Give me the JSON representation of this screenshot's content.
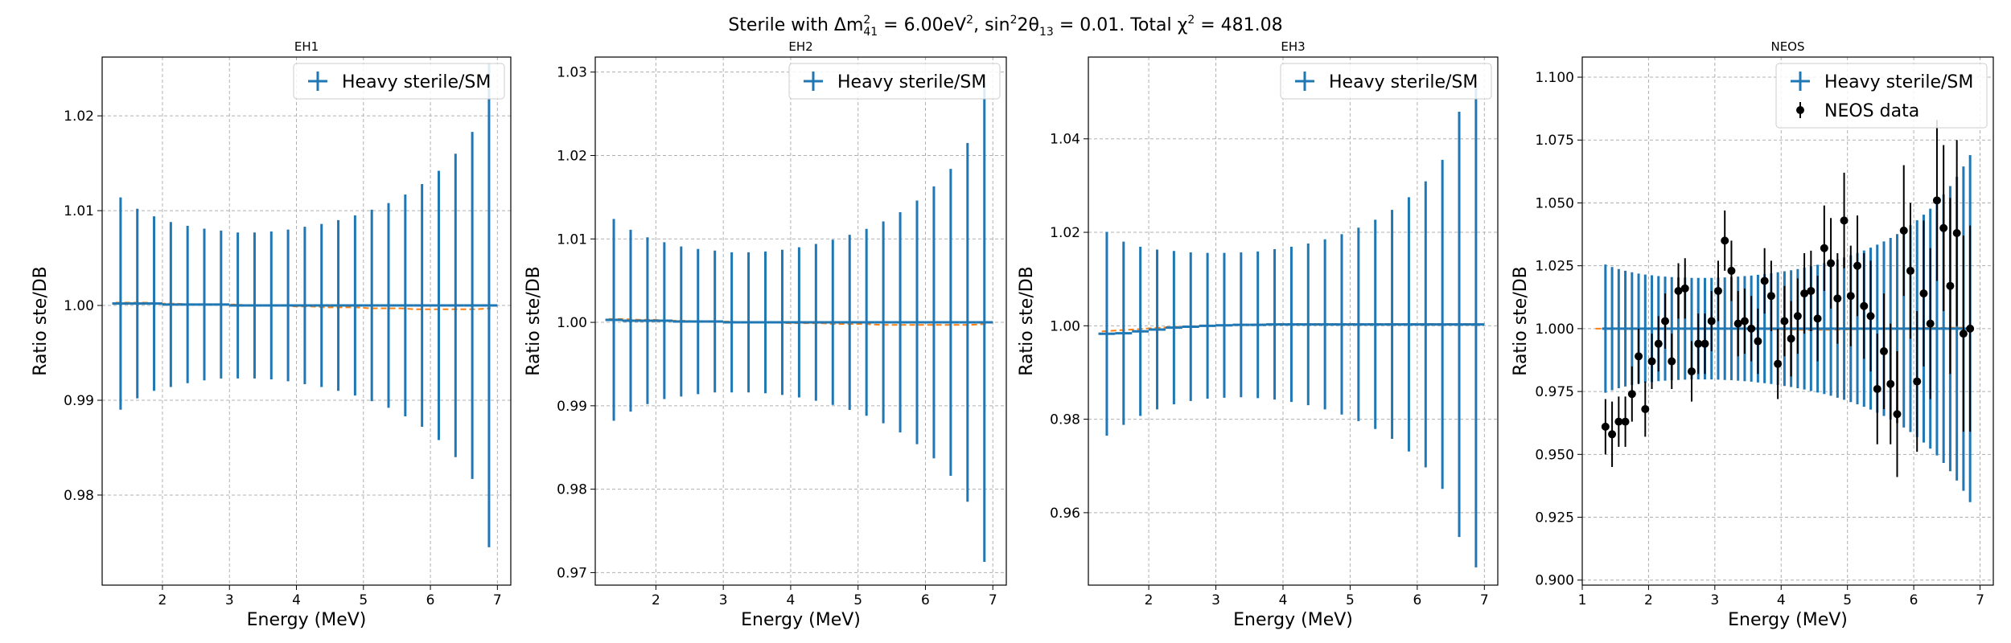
{
  "figure": {
    "title_parts": {
      "t1": "Sterile with Δm",
      "t2": "2",
      "t3": "41",
      "t4": " = 6.00eV",
      "t5": "2",
      "t6": ", sin",
      "t7": "2",
      "t8": "2θ",
      "t9": "13",
      "t10": " = 0.01. Total χ",
      "t11": "2",
      "t12": " = 481.08"
    }
  },
  "colors": {
    "model": "#1f77b4",
    "reference_line": "#ff7f0e",
    "data": "#000000",
    "grid": "#b0b0b0"
  },
  "chart_data": [
    {
      "type": "scatter",
      "title": "EH1",
      "xlabel": "Energy (MeV)",
      "ylabel": "Ratio ste/DB",
      "xlim": [
        1.1,
        7.2
      ],
      "ylim": [
        0.9705,
        1.0262
      ],
      "xticks": [
        2,
        3,
        4,
        5,
        6,
        7
      ],
      "yticks": [
        0.98,
        0.99,
        1.0,
        1.01,
        1.02
      ],
      "ytick_format": 2,
      "grid": true,
      "legend_position": "top-right",
      "reference_line": {
        "y": [
          1.0003,
          1.0003,
          1.0003,
          1.0002,
          1.0002,
          1.0001,
          1.0001,
          1.0001,
          1.0001,
          1.0,
          1.0,
          1.0,
          0.9999,
          0.9999,
          0.9998,
          0.9998,
          0.9998,
          0.9997,
          0.9997,
          0.9997,
          0.9996,
          0.9996,
          0.9996,
          0.9996,
          0.9996,
          0.9997
        ]
      },
      "series": [
        {
          "name": "Heavy sterile/SM",
          "style": "errorbar",
          "x": [
            1.375,
            1.625,
            1.875,
            2.125,
            2.375,
            2.625,
            2.875,
            3.125,
            3.375,
            3.625,
            3.875,
            4.125,
            4.375,
            4.625,
            4.875,
            5.125,
            5.375,
            5.625,
            5.875,
            6.125,
            6.375,
            6.625,
            6.875
          ],
          "xerr": 0.125,
          "y": [
            1.0002,
            1.0002,
            1.0002,
            1.0001,
            1.0001,
            1.0001,
            1.0001,
            1.0,
            1.0,
            1.0,
            1.0,
            1.0,
            1.0,
            1.0,
            1.0,
            1.0,
            1.0,
            1.0,
            1.0,
            1.0,
            1.0,
            1.0,
            1.0
          ],
          "yerr": [
            0.0112,
            0.01,
            0.0092,
            0.0087,
            0.0083,
            0.008,
            0.0078,
            0.0077,
            0.0077,
            0.0078,
            0.008,
            0.0083,
            0.0086,
            0.009,
            0.0095,
            0.0101,
            0.0108,
            0.0117,
            0.0128,
            0.0142,
            0.016,
            0.0183,
            0.0255
          ]
        }
      ]
    },
    {
      "type": "scatter",
      "title": "EH2",
      "xlabel": "Energy (MeV)",
      "ylabel": "Ratio ste/DB",
      "xlim": [
        1.1,
        7.2
      ],
      "ylim": [
        0.9685,
        1.0318
      ],
      "xticks": [
        2,
        3,
        4,
        5,
        6,
        7
      ],
      "yticks": [
        0.97,
        0.98,
        0.99,
        1.0,
        1.01,
        1.02,
        1.03
      ],
      "ytick_format": 2,
      "grid": true,
      "legend_position": "top-right",
      "reference_line": {
        "y": [
          1.0004,
          1.0004,
          1.0003,
          1.0003,
          1.0002,
          1.0002,
          1.0001,
          1.0001,
          1.0001,
          1.0,
          1.0,
          1.0,
          0.9999,
          0.9999,
          0.9999,
          0.9998,
          0.9998,
          0.9998,
          0.9997,
          0.9997,
          0.9997,
          0.9997,
          0.9997,
          0.9997,
          0.9997,
          0.9998
        ]
      },
      "series": [
        {
          "name": "Heavy sterile/SM",
          "style": "errorbar",
          "x": [
            1.375,
            1.625,
            1.875,
            2.125,
            2.375,
            2.625,
            2.875,
            3.125,
            3.375,
            3.625,
            3.875,
            4.125,
            4.375,
            4.625,
            4.875,
            5.125,
            5.375,
            5.625,
            5.875,
            6.125,
            6.375,
            6.625,
            6.875
          ],
          "xerr": 0.125,
          "y": [
            1.0003,
            1.0002,
            1.0002,
            1.0002,
            1.0001,
            1.0001,
            1.0001,
            1.0,
            1.0,
            1.0,
            1.0,
            1.0,
            1.0,
            1.0,
            1.0,
            1.0,
            1.0,
            1.0,
            1.0,
            1.0,
            1.0,
            1.0,
            1.0
          ],
          "yerr": [
            0.0121,
            0.0109,
            0.01,
            0.0094,
            0.009,
            0.0087,
            0.0085,
            0.0084,
            0.0084,
            0.0085,
            0.0087,
            0.009,
            0.0094,
            0.0099,
            0.0105,
            0.0112,
            0.0121,
            0.0132,
            0.0146,
            0.0163,
            0.0184,
            0.0215,
            0.0287
          ]
        }
      ]
    },
    {
      "type": "scatter",
      "title": "EH3",
      "xlabel": "Energy (MeV)",
      "ylabel": "Ratio ste/DB",
      "xlim": [
        1.1,
        7.2
      ],
      "ylim": [
        0.9445,
        1.0575
      ],
      "xticks": [
        2,
        3,
        4,
        5,
        6,
        7
      ],
      "yticks": [
        0.96,
        0.98,
        1.0,
        1.02,
        1.04
      ],
      "ytick_format": 2,
      "grid": true,
      "legend_position": "top-right",
      "reference_line": {
        "y": [
          0.9988,
          0.999,
          0.9992,
          0.9994,
          0.9996,
          0.9998,
          0.9999,
          1.0,
          1.0001,
          1.0002,
          1.0003,
          1.0003,
          1.0004,
          1.0004,
          1.0004,
          1.0004,
          1.0004,
          1.0004,
          1.0004,
          1.0004,
          1.0004,
          1.0004,
          1.0004,
          1.0004,
          1.0004,
          1.0004
        ]
      },
      "series": [
        {
          "name": "Heavy sterile/SM",
          "style": "errorbar",
          "x": [
            1.375,
            1.625,
            1.875,
            2.125,
            2.375,
            2.625,
            2.875,
            3.125,
            3.375,
            3.625,
            3.875,
            4.125,
            4.375,
            4.625,
            4.875,
            5.125,
            5.375,
            5.625,
            5.875,
            6.125,
            6.375,
            6.625,
            6.875
          ],
          "xerr": 0.125,
          "y": [
            0.9983,
            0.9984,
            0.9988,
            0.9992,
            0.9996,
            0.9998,
            1.0,
            1.0001,
            1.0002,
            1.0002,
            1.0003,
            1.0003,
            1.0003,
            1.0003,
            1.0003,
            1.0003,
            1.0003,
            1.0003,
            1.0003,
            1.0003,
            1.0003,
            1.0003,
            1.0003
          ],
          "yerr": [
            0.0218,
            0.0196,
            0.0181,
            0.0171,
            0.0164,
            0.0159,
            0.0156,
            0.0155,
            0.0155,
            0.0157,
            0.0161,
            0.0166,
            0.0173,
            0.0182,
            0.0193,
            0.0207,
            0.0224,
            0.0245,
            0.0272,
            0.0306,
            0.0352,
            0.0455,
            0.052
          ]
        }
      ]
    },
    {
      "type": "scatter",
      "title": "NEOS",
      "xlabel": "Energy (MeV)",
      "ylabel": "Ratio ste/DB",
      "xlim": [
        1.0,
        7.2
      ],
      "ylim": [
        0.898,
        1.108
      ],
      "xticks": [
        1,
        2,
        3,
        4,
        5,
        6,
        7
      ],
      "yticks": [
        0.9,
        0.925,
        0.95,
        0.975,
        1.0,
        1.025,
        1.05,
        1.075,
        1.1
      ],
      "ytick_format": 3,
      "grid": true,
      "legend_position": "top-right",
      "reference_line": {
        "y": [
          1.0,
          1.0,
          1.0,
          1.0,
          1.0,
          1.0,
          1.0,
          1.0,
          1.0,
          1.0,
          1.0,
          0.9998,
          0.9997,
          0.9996,
          0.9995,
          0.9995,
          0.9996,
          0.9997,
          0.9999,
          1.0,
          1.0001,
          1.0002,
          1.0003,
          1.0003,
          1.0004,
          1.0004
        ]
      },
      "series": [
        {
          "name": "Heavy sterile/SM",
          "style": "errorbar",
          "x": [
            1.35,
            1.45,
            1.55,
            1.65,
            1.75,
            1.85,
            1.95,
            2.05,
            2.15,
            2.25,
            2.35,
            2.45,
            2.55,
            2.65,
            2.75,
            2.85,
            2.95,
            3.05,
            3.15,
            3.25,
            3.35,
            3.45,
            3.55,
            3.65,
            3.75,
            3.85,
            3.95,
            4.05,
            4.15,
            4.25,
            4.35,
            4.45,
            4.55,
            4.65,
            4.75,
            4.85,
            4.95,
            5.05,
            5.15,
            5.25,
            5.35,
            5.45,
            5.55,
            5.65,
            5.75,
            5.85,
            5.95,
            6.05,
            6.15,
            6.25,
            6.35,
            6.45,
            6.55,
            6.65,
            6.75,
            6.85
          ],
          "xerr": 0.05,
          "y": [
            1.0,
            1.0,
            1.0,
            1.0,
            1.0,
            1.0,
            1.0,
            1.0,
            1.0,
            1.0,
            1.0,
            1.0,
            1.0,
            1.0,
            1.0,
            1.0,
            1.0,
            1.0,
            1.0,
            1.0,
            1.0,
            1.0,
            1.0,
            1.0,
            1.0,
            1.0,
            1.0,
            1.0,
            1.0,
            1.0,
            1.0,
            1.0,
            1.0,
            1.0,
            1.0,
            1.0,
            1.0,
            1.0,
            1.0,
            1.0,
            1.0,
            1.0,
            1.0,
            1.0,
            1.0,
            1.0,
            1.0,
            1.0,
            1.0,
            1.0,
            1.0,
            1.0,
            1.0,
            1.0,
            1.0,
            1.0
          ],
          "yerr": [
            0.0255,
            0.0245,
            0.0237,
            0.023,
            0.0224,
            0.0219,
            0.0215,
            0.0212,
            0.0209,
            0.0207,
            0.0205,
            0.0204,
            0.0203,
            0.0202,
            0.0202,
            0.0202,
            0.0202,
            0.0203,
            0.0204,
            0.0205,
            0.0207,
            0.0209,
            0.0211,
            0.0214,
            0.0217,
            0.022,
            0.0224,
            0.0228,
            0.0232,
            0.0237,
            0.0242,
            0.0248,
            0.0254,
            0.026,
            0.0267,
            0.0275,
            0.0283,
            0.0292,
            0.0301,
            0.0311,
            0.0322,
            0.0334,
            0.0347,
            0.0361,
            0.0376,
            0.0393,
            0.0411,
            0.0431,
            0.0453,
            0.0477,
            0.0504,
            0.0534,
            0.0567,
            0.0604,
            0.0645,
            0.069
          ]
        },
        {
          "name": "NEOS data",
          "style": "points",
          "x": [
            1.35,
            1.45,
            1.55,
            1.65,
            1.75,
            1.85,
            1.95,
            2.05,
            2.15,
            2.25,
            2.35,
            2.45,
            2.55,
            2.65,
            2.75,
            2.85,
            2.95,
            3.05,
            3.15,
            3.25,
            3.35,
            3.45,
            3.55,
            3.65,
            3.75,
            3.85,
            3.95,
            4.05,
            4.15,
            4.25,
            4.35,
            4.45,
            4.55,
            4.65,
            4.75,
            4.85,
            4.95,
            5.05,
            5.15,
            5.25,
            5.35,
            5.45,
            5.55,
            5.65,
            5.75,
            5.85,
            5.95,
            6.05,
            6.15,
            6.25,
            6.35,
            6.45,
            6.55,
            6.65,
            6.75,
            6.85
          ],
          "y": [
            0.961,
            0.958,
            0.963,
            0.963,
            0.974,
            0.989,
            0.968,
            0.987,
            0.994,
            1.003,
            0.987,
            1.015,
            1.016,
            0.983,
            0.994,
            0.994,
            1.003,
            1.015,
            1.035,
            1.023,
            1.002,
            1.003,
            1.0,
            0.995,
            1.019,
            1.013,
            0.986,
            1.003,
            0.996,
            1.005,
            1.014,
            1.015,
            1.004,
            1.032,
            1.026,
            1.012,
            1.043,
            1.013,
            1.025,
            1.009,
            1.005,
            0.976,
            0.991,
            0.978,
            0.966,
            1.039,
            1.023,
            0.979,
            1.014,
            1.002,
            1.051,
            1.04,
            1.017,
            1.038,
            0.998,
            1.0
          ],
          "yerr": [
            0.011,
            0.013,
            0.01,
            0.01,
            0.011,
            0.011,
            0.011,
            0.011,
            0.011,
            0.011,
            0.011,
            0.011,
            0.012,
            0.012,
            0.012,
            0.012,
            0.012,
            0.012,
            0.012,
            0.012,
            0.013,
            0.013,
            0.013,
            0.013,
            0.013,
            0.014,
            0.014,
            0.014,
            0.015,
            0.015,
            0.016,
            0.016,
            0.017,
            0.017,
            0.018,
            0.018,
            0.019,
            0.02,
            0.02,
            0.021,
            0.022,
            0.022,
            0.023,
            0.024,
            0.025,
            0.026,
            0.027,
            0.028,
            0.029,
            0.03,
            0.032,
            0.033,
            0.035,
            0.037,
            0.039,
            0.041
          ]
        }
      ]
    }
  ]
}
